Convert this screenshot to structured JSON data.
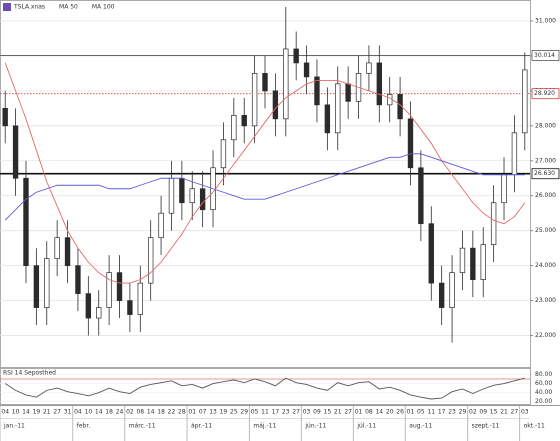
{
  "chart_data": {
    "type": "candlestick",
    "categories": [
      "04",
      "10",
      "14",
      "19",
      "21",
      "27",
      "31",
      "04",
      "10",
      "14",
      "18",
      "24",
      "02",
      "08",
      "14",
      "18",
      "22",
      "28",
      "01",
      "07",
      "13",
      "19",
      "25",
      "29",
      "05",
      "11",
      "17",
      "23",
      "27",
      "03",
      "09",
      "15",
      "21",
      "27",
      "01",
      "08",
      "14",
      "20",
      "26",
      "01",
      "05",
      "11",
      "17",
      "23",
      "29",
      "02",
      "09",
      "15",
      "21",
      "27",
      "03"
    ],
    "month_labels": [
      "jan.-11",
      null,
      null,
      null,
      null,
      null,
      null,
      "febr.",
      null,
      null,
      null,
      null,
      "márc.-11",
      null,
      null,
      null,
      null,
      null,
      "ápr.-11",
      null,
      null,
      null,
      null,
      null,
      "máj.-11",
      null,
      null,
      null,
      null,
      "jún.-11",
      null,
      null,
      null,
      null,
      "júl.-11",
      null,
      null,
      null,
      null,
      "aug.-11",
      null,
      null,
      null,
      null,
      null,
      "szept.-11",
      null,
      null,
      null,
      null,
      "okt.-11"
    ],
    "series": [
      {
        "name": "TSLA.xnas",
        "type": "candlestick",
        "color": "#2b2b2b",
        "open": [
          28.5,
          28.0,
          26.5,
          24.0,
          22.8,
          24.2,
          24.8,
          24.0,
          23.2,
          22.5,
          22.8,
          23.8,
          23.0,
          22.6,
          23.5,
          24.8,
          25.5,
          26.5,
          25.8,
          26.2,
          25.6,
          26.8,
          27.6,
          28.3,
          28.0,
          29.5,
          29.0,
          28.2,
          30.2,
          29.8,
          29.4,
          28.6,
          27.8,
          29.2,
          28.7,
          29.5,
          29.8,
          28.6,
          28.9,
          28.2,
          26.8,
          25.2,
          23.5,
          22.8,
          23.8,
          24.5,
          23.6,
          24.6,
          25.8,
          26.6,
          27.8
        ],
        "high": [
          29.0,
          28.5,
          27.0,
          24.5,
          24.7,
          25.3,
          25.3,
          24.5,
          23.7,
          23.3,
          24.3,
          24.3,
          23.5,
          24.0,
          25.3,
          26.0,
          27.0,
          27.0,
          26.7,
          26.7,
          27.3,
          28.1,
          28.8,
          28.8,
          30.0,
          30.0,
          29.5,
          31.4,
          30.7,
          30.3,
          29.9,
          29.1,
          29.7,
          29.7,
          30.0,
          30.3,
          30.3,
          29.4,
          29.4,
          28.7,
          27.3,
          25.7,
          24.0,
          24.3,
          25.0,
          25.0,
          25.1,
          26.3,
          27.1,
          28.3,
          30.1
        ],
        "low": [
          27.5,
          26.0,
          23.5,
          22.3,
          22.3,
          23.7,
          23.5,
          22.7,
          22.0,
          22.0,
          22.3,
          22.5,
          22.1,
          22.1,
          23.0,
          24.3,
          25.0,
          25.3,
          25.3,
          25.1,
          25.1,
          26.3,
          27.1,
          27.5,
          27.5,
          28.5,
          27.7,
          27.7,
          29.3,
          28.9,
          28.1,
          27.3,
          27.3,
          28.2,
          28.2,
          29.0,
          28.1,
          28.1,
          27.7,
          26.3,
          24.7,
          23.0,
          22.3,
          21.8,
          23.3,
          23.1,
          23.1,
          24.1,
          25.3,
          26.1,
          27.3
        ],
        "close": [
          28.0,
          26.5,
          24.0,
          22.8,
          24.2,
          24.8,
          24.0,
          23.2,
          22.5,
          22.8,
          23.8,
          23.0,
          22.6,
          23.5,
          24.8,
          25.5,
          26.5,
          25.8,
          26.2,
          25.6,
          26.8,
          27.6,
          28.3,
          28.0,
          29.5,
          29.0,
          28.2,
          30.2,
          29.8,
          29.4,
          28.6,
          27.8,
          29.2,
          28.7,
          29.5,
          29.8,
          28.6,
          28.9,
          28.2,
          26.8,
          25.2,
          23.5,
          22.8,
          23.8,
          24.5,
          23.6,
          24.6,
          25.8,
          26.6,
          27.8,
          29.6
        ]
      },
      {
        "name": "MA 50",
        "type": "line",
        "color": "#e06a6a",
        "values": [
          29.8,
          29.0,
          28.2,
          27.3,
          26.4,
          25.7,
          25.0,
          24.5,
          24.1,
          23.8,
          23.6,
          23.5,
          23.5,
          23.6,
          23.8,
          24.1,
          24.5,
          24.9,
          25.4,
          25.8,
          26.1,
          26.5,
          26.9,
          27.3,
          27.7,
          28.1,
          28.5,
          28.8,
          29.0,
          29.2,
          29.3,
          29.3,
          29.3,
          29.2,
          29.1,
          29.0,
          28.9,
          28.8,
          28.6,
          28.3,
          27.9,
          27.5,
          27.0,
          26.6,
          26.2,
          25.8,
          25.5,
          25.3,
          25.2,
          25.4,
          25.8
        ]
      },
      {
        "name": "MA 100",
        "type": "line",
        "color": "#5b5bd6",
        "values": [
          25.3,
          25.6,
          25.9,
          26.1,
          26.2,
          26.3,
          26.3,
          26.3,
          26.3,
          26.3,
          26.2,
          26.2,
          26.2,
          26.3,
          26.4,
          26.5,
          26.5,
          26.5,
          26.4,
          26.3,
          26.2,
          26.1,
          26.0,
          25.9,
          25.9,
          25.9,
          26.0,
          26.1,
          26.2,
          26.3,
          26.4,
          26.5,
          26.6,
          26.7,
          26.8,
          26.9,
          27.0,
          27.1,
          27.1,
          27.2,
          27.2,
          27.1,
          27.0,
          26.9,
          26.8,
          26.7,
          26.6,
          26.6,
          26.6,
          26.6,
          26.6
        ]
      }
    ],
    "ylim": [
      21.1,
      31.6
    ],
    "yticks": [
      {
        "value": 31,
        "label": "31.000"
      },
      {
        "value": 30,
        "label": "30.000"
      },
      {
        "value": 29,
        "label": "29.000"
      },
      {
        "value": 28,
        "label": "28.000"
      },
      {
        "value": 27,
        "label": "27.000"
      },
      {
        "value": 26,
        "label": "26.000"
      },
      {
        "value": 25,
        "label": "25.000"
      },
      {
        "value": 24,
        "label": "24.000"
      },
      {
        "value": 23,
        "label": "23.000"
      },
      {
        "value": 22,
        "label": "22.000"
      }
    ],
    "grid": true,
    "levels": {
      "values": [
        30.014,
        28.92,
        26.63
      ],
      "value_labels": [
        "30.014",
        "28.920",
        "26.630"
      ],
      "colors": [
        "#555555",
        "#d04040",
        "#111111"
      ],
      "styles": [
        "solid",
        "dotted",
        "bold"
      ]
    },
    "rsi": {
      "name": "RSI 14 Seposthed",
      "type": "line",
      "color": "#555555",
      "values": [
        60,
        45,
        35,
        30,
        45,
        50,
        42,
        38,
        33,
        40,
        50,
        42,
        38,
        52,
        58,
        62,
        66,
        55,
        58,
        50,
        60,
        64,
        68,
        62,
        70,
        64,
        55,
        72,
        62,
        58,
        50,
        45,
        62,
        55,
        62,
        64,
        48,
        52,
        45,
        35,
        30,
        26,
        28,
        42,
        48,
        38,
        48,
        56,
        60,
        66,
        72
      ],
      "ylim": [
        15,
        92
      ],
      "yticks": [
        {
          "value": 80,
          "label": "80.00"
        },
        {
          "value": 60,
          "label": "60.00"
        },
        {
          "value": 40,
          "label": "40.00"
        },
        {
          "value": 20,
          "label": "20.00"
        }
      ],
      "level": 70,
      "level_color": "#e07070"
    }
  }
}
